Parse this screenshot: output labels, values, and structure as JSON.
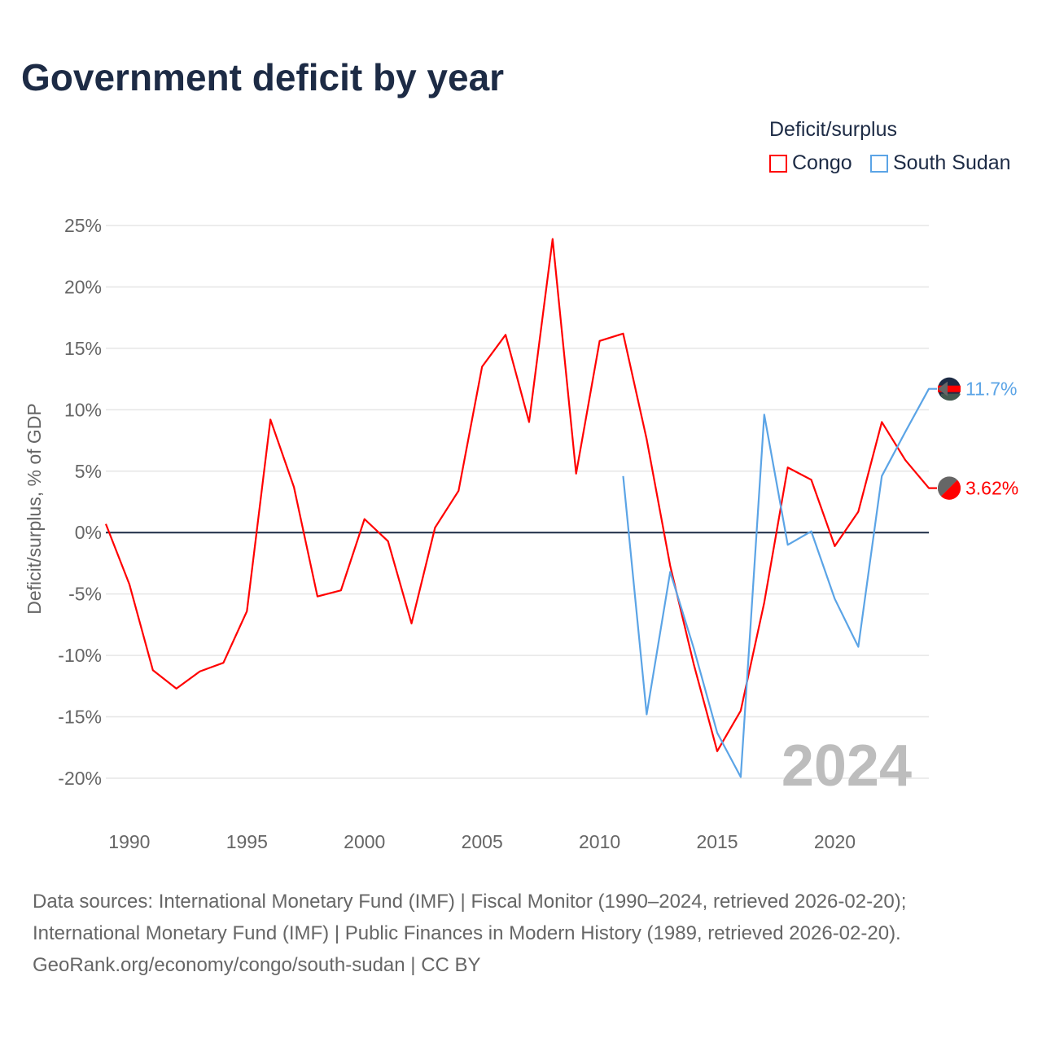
{
  "chart_data": {
    "type": "line",
    "title": "Government deficit by year",
    "ylabel": "Deficit/surplus, % of GDP",
    "xlabel": "",
    "ylim": [
      -20,
      25
    ],
    "xlim": [
      1989,
      2024
    ],
    "yticks": [
      "25%",
      "20%",
      "15%",
      "10%",
      "5%",
      "0%",
      "-5%",
      "-10%",
      "-15%",
      "-20%"
    ],
    "ytick_values": [
      25,
      20,
      15,
      10,
      5,
      0,
      -5,
      -10,
      -15,
      -20
    ],
    "xticks": [
      "1990",
      "1995",
      "2000",
      "2005",
      "2010",
      "2015",
      "2020"
    ],
    "xtick_values": [
      1990,
      1995,
      2000,
      2005,
      2010,
      2015,
      2020
    ],
    "legend_title": "Deficit/surplus",
    "legend_placement": "top-right",
    "watermark_year": "2024",
    "series": [
      {
        "name": "Congo",
        "color": "#ff0000",
        "end_label": "3.62%",
        "x": [
          1989,
          1990,
          1991,
          1992,
          1993,
          1994,
          1995,
          1996,
          1997,
          1998,
          1999,
          2000,
          2001,
          2002,
          2003,
          2004,
          2005,
          2006,
          2007,
          2008,
          2009,
          2010,
          2011,
          2012,
          2013,
          2014,
          2015,
          2016,
          2017,
          2018,
          2019,
          2020,
          2021,
          2022,
          2023,
          2024
        ],
        "values": [
          0.7,
          -4.2,
          -11.2,
          -12.7,
          -11.3,
          -10.6,
          -6.4,
          9.2,
          3.7,
          -5.2,
          -4.7,
          1.1,
          -0.7,
          -7.4,
          0.4,
          3.4,
          13.5,
          16.1,
          9.0,
          23.9,
          4.8,
          15.6,
          16.2,
          7.6,
          -2.7,
          -10.7,
          -17.8,
          -14.5,
          -5.7,
          5.3,
          4.3,
          -1.1,
          1.7,
          9.0,
          5.9,
          3.62
        ]
      },
      {
        "name": "South Sudan",
        "color": "#5ba4e6",
        "end_label": "11.7%",
        "x": [
          2011,
          2012,
          2013,
          2014,
          2015,
          2016,
          2017,
          2018,
          2019,
          2020,
          2021,
          2022,
          2023,
          2024
        ],
        "values": [
          4.6,
          -14.8,
          -3.2,
          -9.4,
          -16.3,
          -19.9,
          9.6,
          -1.0,
          0.1,
          -5.4,
          -9.3,
          4.6,
          8.2,
          11.7
        ]
      }
    ]
  },
  "footer": {
    "line1": "Data sources: International Monetary Fund (IMF) | Fiscal Monitor (1990–2024, retrieved 2026-02-20);",
    "line2": "International Monetary Fund (IMF) | Public Finances in Modern History (1989, retrieved 2026-02-20).",
    "line3": "GeoRank.org/economy/congo/south-sudan | CC BY"
  }
}
